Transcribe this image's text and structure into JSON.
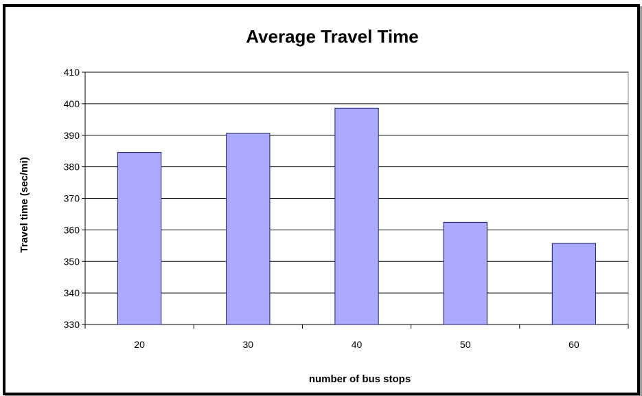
{
  "chart_data": {
    "type": "bar",
    "title": "Average Travel Time",
    "xlabel": "number of bus stops",
    "ylabel": "Travel time (sec/mi)",
    "categories": [
      "20",
      "30",
      "40",
      "50",
      "60"
    ],
    "values": [
      384.6,
      390.6,
      398.6,
      362.4,
      355.7
    ],
    "ylim": [
      330,
      410
    ],
    "yticks": [
      "330",
      "340",
      "350",
      "360",
      "370",
      "380",
      "390",
      "400",
      "410"
    ],
    "grid": true,
    "legend": "none",
    "colors": {
      "bar_fill": "#aaaaff",
      "bar_stroke": "#1a1a6e",
      "gridline": "#000000",
      "plot_border": "#808080",
      "frame": "#000000"
    }
  }
}
